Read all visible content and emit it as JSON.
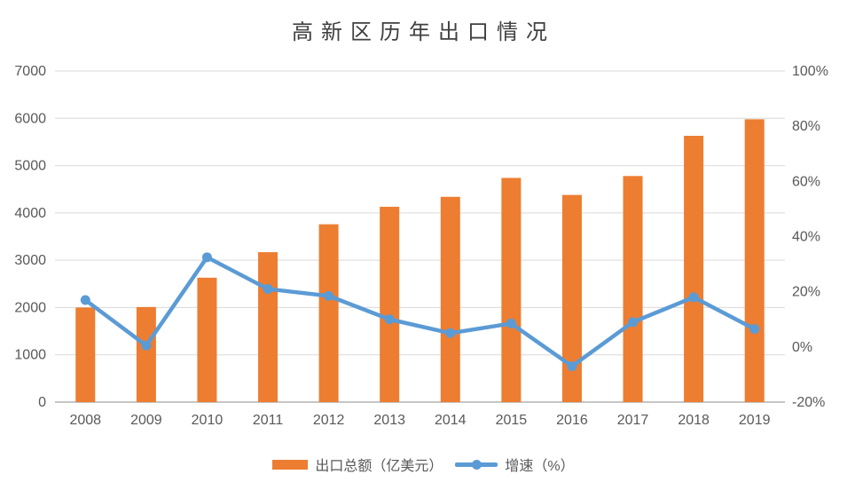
{
  "title": "高新区历年出口情况",
  "colors": {
    "bar": "#ED7D31",
    "line": "#5B9BD5",
    "grid": "#D9D9D9",
    "axis_line": "#C6C6C6",
    "tick_text": "#595959",
    "title_text": "#404040"
  },
  "legend": [
    {
      "label": "出口总额（亿美元）",
      "type": "bar"
    },
    {
      "label": "增速（%）",
      "type": "line"
    }
  ],
  "chart_data": {
    "type": "combo",
    "title": "高新区历年出口情况",
    "categories": [
      "2008",
      "2009",
      "2010",
      "2011",
      "2012",
      "2013",
      "2014",
      "2015",
      "2016",
      "2017",
      "2018",
      "2019"
    ],
    "series": [
      {
        "name": "出口总额（亿美元）",
        "type": "bar",
        "axis": "left",
        "values": [
          2000,
          2010,
          2630,
          3170,
          3760,
          4130,
          4340,
          4740,
          4380,
          4780,
          5630,
          5980
        ]
      },
      {
        "name": "增速（%）",
        "type": "line",
        "axis": "right",
        "values": [
          17,
          0.5,
          32.5,
          21,
          18.5,
          10,
          5,
          8.5,
          -7,
          9,
          18,
          6.5
        ]
      }
    ],
    "left_axis": {
      "min": 0,
      "max": 7000,
      "step": 1000,
      "tick_labels": [
        "0",
        "1000",
        "2000",
        "3000",
        "4000",
        "5000",
        "6000",
        "7000"
      ]
    },
    "right_axis": {
      "min": -20,
      "max": 100,
      "step": 20,
      "tick_labels": [
        "-20%",
        "0%",
        "20%",
        "40%",
        "60%",
        "80%",
        "100%"
      ]
    },
    "grid": true,
    "legend_position": "bottom"
  }
}
